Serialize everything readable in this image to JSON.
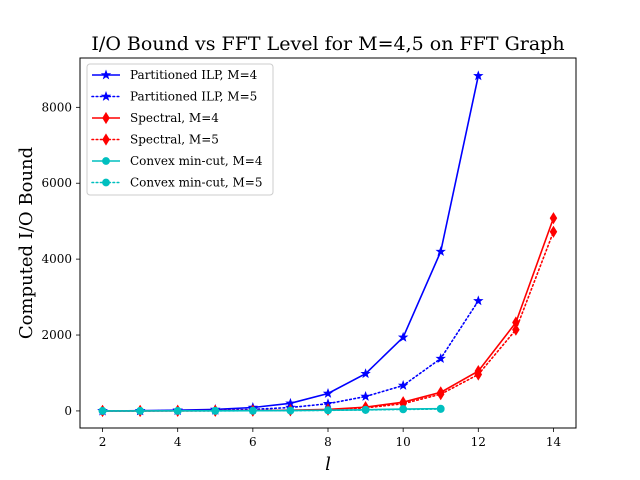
{
  "chart_data": {
    "type": "line",
    "title": "I/O Bound vs FFT Level for M=4,5 on FFT Graph",
    "xlabel": "l",
    "ylabel": "Computed I/O Bound",
    "xlim": [
      1.4,
      14.6
    ],
    "ylim": [
      -450,
      9300
    ],
    "xticks": [
      2,
      4,
      6,
      8,
      10,
      12,
      14
    ],
    "yticks": [
      0,
      2000,
      4000,
      6000,
      8000
    ],
    "grid": false,
    "legend_position": "top-left",
    "series": [
      {
        "name": "Partitioned ILP, M=4",
        "color": "#0000ff",
        "linestyle": "solid",
        "marker": "star",
        "x": [
          2,
          3,
          4,
          5,
          6,
          7,
          8,
          9,
          10,
          11,
          12
        ],
        "y": [
          0,
          6,
          20,
          40,
          90,
          200,
          460,
          980,
          1940,
          4200,
          8830
        ]
      },
      {
        "name": "Partitioned ILP, M=5",
        "color": "#0000ff",
        "linestyle": "dotted",
        "marker": "star",
        "x": [
          2,
          3,
          4,
          5,
          6,
          7,
          8,
          9,
          10,
          11,
          12
        ],
        "y": [
          0,
          2,
          8,
          16,
          40,
          90,
          190,
          380,
          670,
          1380,
          2900
        ]
      },
      {
        "name": "Spectral, M=4",
        "color": "#ff0000",
        "linestyle": "solid",
        "marker": "thin_diamond",
        "x": [
          2,
          3,
          4,
          5,
          6,
          7,
          8,
          9,
          10,
          11,
          12,
          13,
          14
        ],
        "y": [
          0,
          1,
          3,
          5,
          10,
          20,
          40,
          100,
          230,
          490,
          1050,
          2330,
          5080
        ]
      },
      {
        "name": "Spectral, M=5",
        "color": "#ff0000",
        "linestyle": "dotted",
        "marker": "thin_diamond",
        "x": [
          2,
          3,
          4,
          5,
          6,
          7,
          8,
          9,
          10,
          11,
          12,
          13,
          14
        ],
        "y": [
          0,
          1,
          2,
          4,
          8,
          16,
          33,
          80,
          190,
          440,
          960,
          2140,
          4720
        ]
      },
      {
        "name": "Convex min-cut, M=4",
        "color": "#00bfbf",
        "linestyle": "solid",
        "marker": "circle",
        "x": [
          2,
          3,
          4,
          5,
          6,
          7,
          8,
          9,
          10,
          11
        ],
        "y": [
          0,
          1,
          2,
          3,
          6,
          10,
          20,
          30,
          50,
          60
        ]
      },
      {
        "name": "Convex min-cut, M=5",
        "color": "#00bfbf",
        "linestyle": "dotted",
        "marker": "circle",
        "x": [
          2,
          3,
          4,
          5,
          6,
          7,
          8,
          9,
          10,
          11
        ],
        "y": [
          0,
          1,
          2,
          3,
          5,
          8,
          16,
          25,
          40,
          50
        ]
      }
    ]
  }
}
